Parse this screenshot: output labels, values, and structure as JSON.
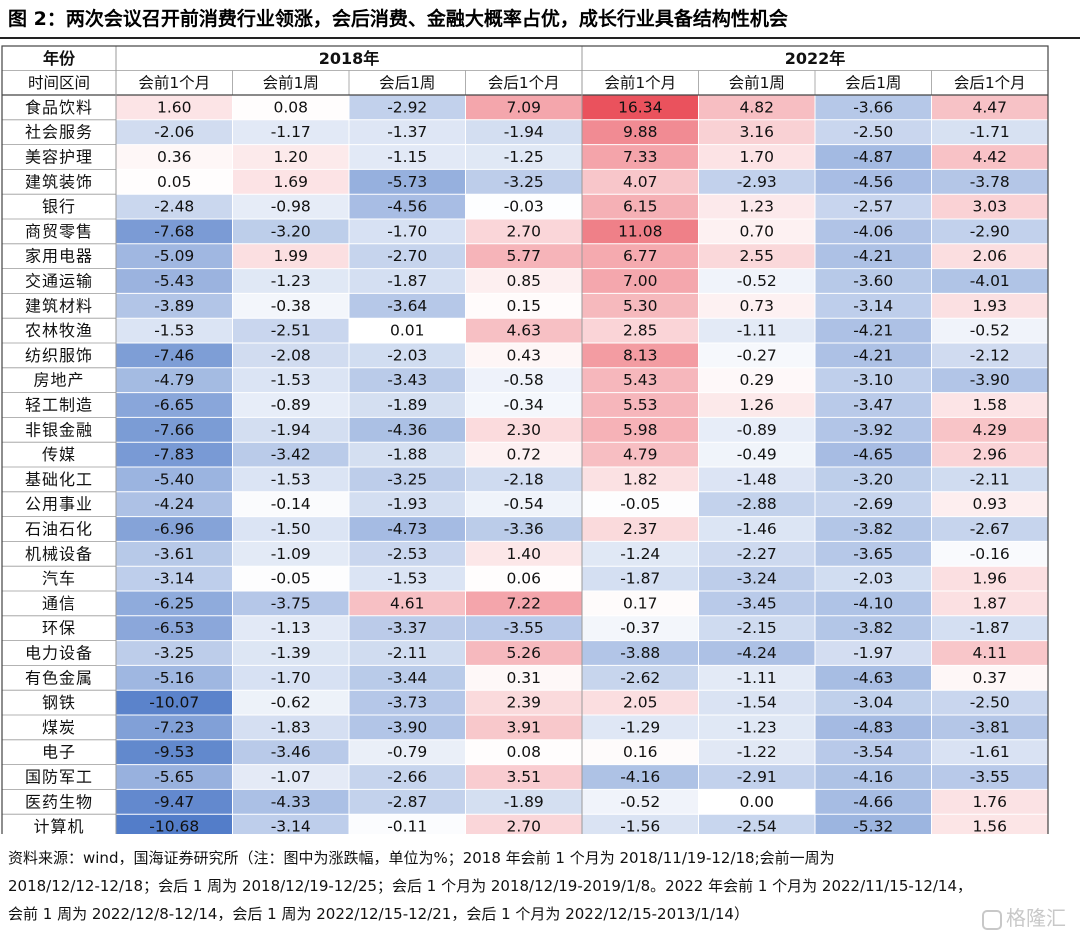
{
  "title": "图 2：两次会议召开前消费行业领涨，会后消费、金融大概率占优，成长行业具备结构性机会",
  "chart_data": {
    "type": "table",
    "header_row1_label": "年份",
    "header_row2_label": "时间区间",
    "years": [
      "2018年",
      "2022年"
    ],
    "periods": [
      "会前1个月",
      "会前1周",
      "会后1周",
      "会后1个月"
    ],
    "rows": [
      {
        "industry": "食品饮料",
        "values": [
          1.6,
          0.08,
          -2.92,
          7.09,
          16.34,
          4.82,
          -3.66,
          4.47
        ]
      },
      {
        "industry": "社会服务",
        "values": [
          -2.06,
          -1.17,
          -1.37,
          -1.94,
          9.88,
          3.16,
          -2.5,
          -1.71
        ]
      },
      {
        "industry": "美容护理",
        "values": [
          0.36,
          1.2,
          -1.15,
          -1.25,
          7.33,
          1.7,
          -4.87,
          4.42
        ]
      },
      {
        "industry": "建筑装饰",
        "values": [
          0.05,
          1.69,
          -5.73,
          -3.25,
          4.07,
          -2.93,
          -4.56,
          -3.78
        ]
      },
      {
        "industry": "银行",
        "values": [
          -2.48,
          -0.98,
          -4.56,
          -0.03,
          6.15,
          1.23,
          -2.57,
          3.03
        ]
      },
      {
        "industry": "商贸零售",
        "values": [
          -7.68,
          -3.2,
          -1.7,
          2.7,
          11.08,
          0.7,
          -4.06,
          -2.9
        ]
      },
      {
        "industry": "家用电器",
        "values": [
          -5.09,
          1.99,
          -2.7,
          5.77,
          6.77,
          2.55,
          -4.21,
          2.06
        ]
      },
      {
        "industry": "交通运输",
        "values": [
          -5.43,
          -1.23,
          -1.87,
          0.85,
          7.0,
          -0.52,
          -3.6,
          -4.01
        ]
      },
      {
        "industry": "建筑材料",
        "values": [
          -3.89,
          -0.38,
          -3.64,
          0.15,
          5.3,
          0.73,
          -3.14,
          1.93
        ]
      },
      {
        "industry": "农林牧渔",
        "values": [
          -1.53,
          -2.51,
          0.01,
          4.63,
          2.85,
          -1.11,
          -4.21,
          -0.52
        ]
      },
      {
        "industry": "纺织服饰",
        "values": [
          -7.46,
          -2.08,
          -2.03,
          0.43,
          8.13,
          -0.27,
          -4.21,
          -2.12
        ]
      },
      {
        "industry": "房地产",
        "values": [
          -4.79,
          -1.53,
          -3.43,
          -0.58,
          5.43,
          0.29,
          -3.1,
          -3.9
        ]
      },
      {
        "industry": "轻工制造",
        "values": [
          -6.65,
          -0.89,
          -1.89,
          -0.34,
          5.53,
          1.26,
          -3.47,
          1.58
        ]
      },
      {
        "industry": "非银金融",
        "values": [
          -7.66,
          -1.94,
          -4.36,
          2.3,
          5.98,
          -0.89,
          -3.92,
          4.29
        ]
      },
      {
        "industry": "传媒",
        "values": [
          -7.83,
          -3.42,
          -1.88,
          0.72,
          4.79,
          -0.49,
          -4.65,
          2.96
        ]
      },
      {
        "industry": "基础化工",
        "values": [
          -5.4,
          -1.53,
          -3.25,
          -2.18,
          1.82,
          -1.48,
          -3.2,
          -2.11
        ]
      },
      {
        "industry": "公用事业",
        "values": [
          -4.24,
          -0.14,
          -1.93,
          -0.54,
          -0.05,
          -2.88,
          -2.69,
          0.93
        ]
      },
      {
        "industry": "石油石化",
        "values": [
          -6.96,
          -1.5,
          -4.73,
          -3.36,
          2.37,
          -1.46,
          -3.82,
          -2.67
        ]
      },
      {
        "industry": "机械设备",
        "values": [
          -3.61,
          -1.09,
          -2.53,
          1.4,
          -1.24,
          -2.27,
          -3.65,
          -0.16
        ]
      },
      {
        "industry": "汽车",
        "values": [
          -3.14,
          -0.05,
          -1.53,
          0.06,
          -1.87,
          -3.24,
          -2.03,
          1.96
        ]
      },
      {
        "industry": "通信",
        "values": [
          -6.25,
          -3.75,
          4.61,
          7.22,
          0.17,
          -3.45,
          -4.1,
          1.87
        ]
      },
      {
        "industry": "环保",
        "values": [
          -6.53,
          -1.13,
          -3.37,
          -3.55,
          -0.37,
          -2.15,
          -3.82,
          -1.87
        ]
      },
      {
        "industry": "电力设备",
        "values": [
          -3.25,
          -1.39,
          -2.11,
          5.26,
          -3.88,
          -4.24,
          -1.97,
          4.11
        ]
      },
      {
        "industry": "有色金属",
        "values": [
          -5.16,
          -1.7,
          -3.44,
          0.31,
          -2.62,
          -1.11,
          -4.63,
          0.37
        ]
      },
      {
        "industry": "钢铁",
        "values": [
          -10.07,
          -0.62,
          -3.73,
          2.39,
          2.05,
          -1.54,
          -3.04,
          -2.5
        ]
      },
      {
        "industry": "煤炭",
        "values": [
          -7.23,
          -1.83,
          -3.9,
          3.91,
          -1.29,
          -1.23,
          -4.83,
          -3.81
        ]
      },
      {
        "industry": "电子",
        "values": [
          -9.53,
          -3.46,
          -0.79,
          0.08,
          0.16,
          -1.22,
          -3.54,
          -1.61
        ]
      },
      {
        "industry": "国防军工",
        "values": [
          -5.65,
          -1.07,
          -2.66,
          3.51,
          -4.16,
          -2.91,
          -4.16,
          -3.55
        ]
      },
      {
        "industry": "医药生物",
        "values": [
          -9.47,
          -4.33,
          -2.87,
          -1.89,
          -0.52,
          0.0,
          -4.66,
          1.76
        ]
      },
      {
        "industry": "计算机",
        "values": [
          -10.68,
          -3.14,
          -0.11,
          2.7,
          -1.56,
          -2.54,
          -5.32,
          1.56
        ]
      }
    ],
    "colors": {
      "positive": "#e8434f",
      "negative": "#4472c4",
      "neutral": "#ffffff"
    }
  },
  "source_lines": [
    "资料来源：wind，国海证券研究所（注：图中为涨跌幅，单位为%；2018 年会前 1 个月为 2018/11/19-12/18;会前一周为",
    "2018/12/12-12/18；会后 1 周为 2018/12/19-12/25；会后 1 个月为 2018/12/19-2019/1/8。2022 年会前 1 个月为 2022/11/15-12/14，",
    "会前 1 周为 2022/12/8-12/14，会后 1 周为 2022/12/15-12/21，会后 1 个月为 2022/12/15-2013/1/14）"
  ],
  "watermark": "格隆汇"
}
